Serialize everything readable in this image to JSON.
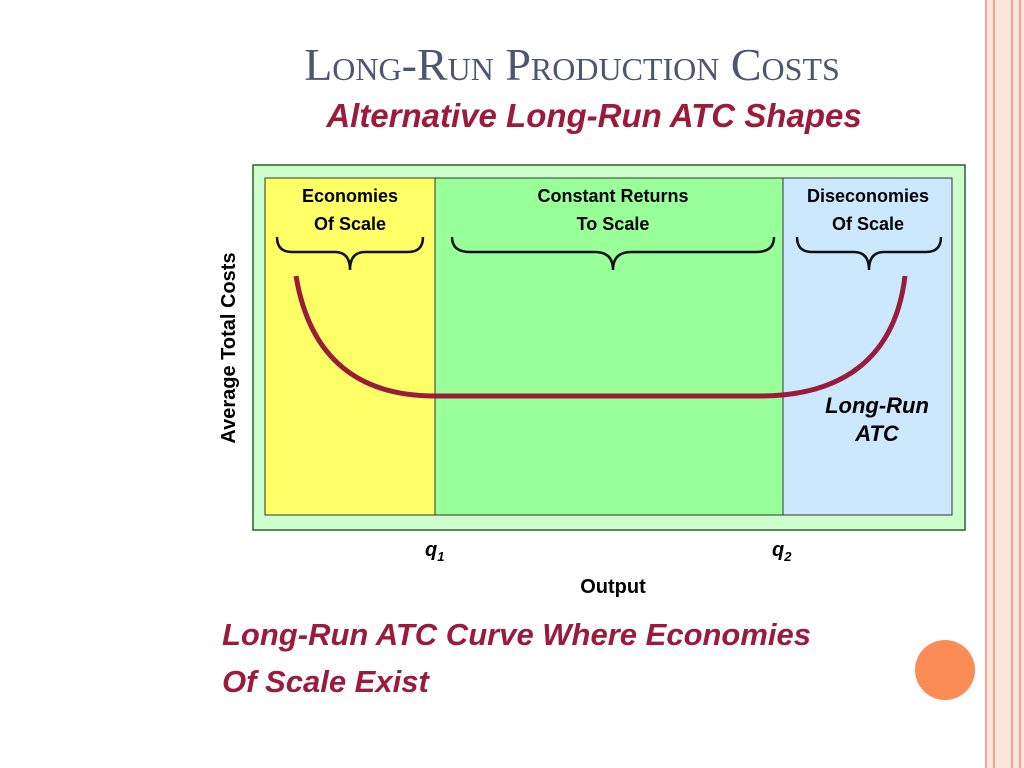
{
  "title": "Long-Run Production Costs",
  "subtitle": "Alternative Long-Run ATC Shapes",
  "regions": [
    {
      "lines": [
        "Economies",
        "Of Scale"
      ]
    },
    {
      "lines": [
        "Constant Returns",
        "To Scale"
      ]
    },
    {
      "lines": [
        "Diseconomies",
        "Of Scale"
      ]
    }
  ],
  "y_axis_label": "Average Total Costs",
  "x_axis_label": "Output",
  "markers": [
    {
      "symbol": "q",
      "subscript": "1"
    },
    {
      "symbol": "q",
      "subscript": "2"
    }
  ],
  "curve_label": [
    "Long-Run",
    "ATC"
  ],
  "caption": [
    "Long-Run ATC Curve Where Economies",
    "Of Scale Exist"
  ]
}
